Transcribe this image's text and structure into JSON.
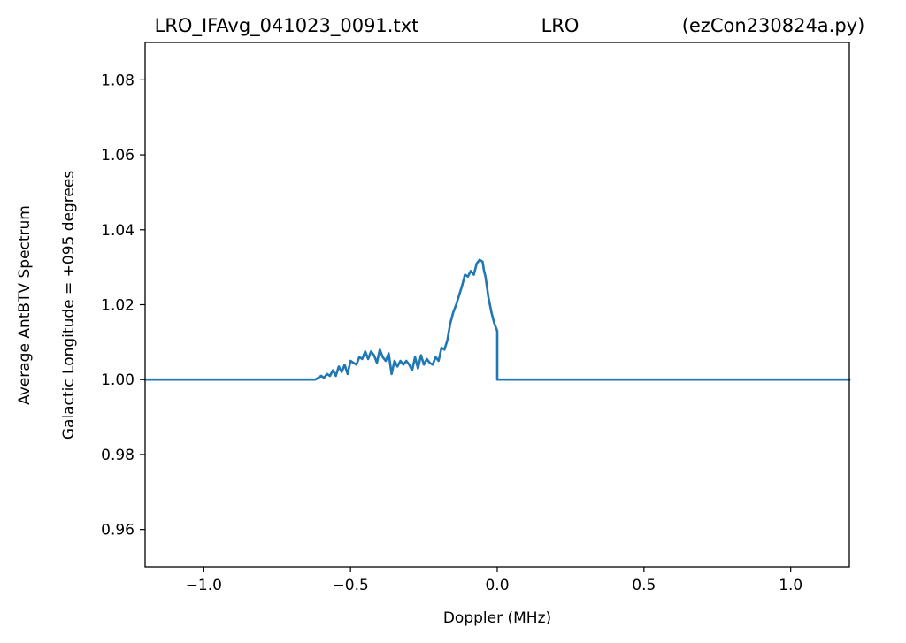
{
  "chart_data": {
    "type": "line",
    "title_parts": {
      "left": "LRO_IFAvg_041023_0091.txt",
      "center": "LRO",
      "right": "(ezCon230824a.py)"
    },
    "xlabel": "Doppler (MHz)",
    "ylabel_lines": [
      "Average AntBTV Spectrum",
      "Galactic Longitude = +095 degrees"
    ],
    "xlim": [
      -1.2,
      1.2
    ],
    "ylim": [
      0.95,
      1.09
    ],
    "xticks": [
      -1.0,
      -0.5,
      0.0,
      0.5,
      1.0
    ],
    "xtick_labels": [
      "−1.0",
      "−0.5",
      "0.0",
      "0.5",
      "1.0"
    ],
    "yticks": [
      0.96,
      0.98,
      1.0,
      1.02,
      1.04,
      1.06,
      1.08
    ],
    "ytick_labels": [
      "0.96",
      "0.98",
      "1.00",
      "1.02",
      "1.04",
      "1.06",
      "1.08"
    ],
    "grid": false,
    "series": [
      {
        "color": "#1f77b4",
        "x": [
          -1.2,
          -0.62,
          -0.6,
          -0.59,
          -0.58,
          -0.57,
          -0.56,
          -0.55,
          -0.54,
          -0.53,
          -0.52,
          -0.51,
          -0.5,
          -0.49,
          -0.48,
          -0.47,
          -0.46,
          -0.45,
          -0.44,
          -0.43,
          -0.42,
          -0.41,
          -0.4,
          -0.39,
          -0.38,
          -0.37,
          -0.36,
          -0.35,
          -0.34,
          -0.33,
          -0.32,
          -0.31,
          -0.3,
          -0.29,
          -0.28,
          -0.27,
          -0.26,
          -0.25,
          -0.24,
          -0.23,
          -0.22,
          -0.21,
          -0.2,
          -0.19,
          -0.18,
          -0.17,
          -0.16,
          -0.15,
          -0.14,
          -0.13,
          -0.12,
          -0.11,
          -0.1,
          -0.09,
          -0.08,
          -0.07,
          -0.06,
          -0.05,
          -0.045,
          -0.04,
          -0.03,
          -0.02,
          -0.01,
          0.0,
          0.0,
          1.2
        ],
        "y": [
          1.0,
          1.0,
          1.001,
          1.0005,
          1.0015,
          1.001,
          1.0025,
          1.001,
          1.0035,
          1.002,
          1.004,
          1.0015,
          1.005,
          1.0045,
          1.004,
          1.006,
          1.0055,
          1.0075,
          1.0055,
          1.0075,
          1.0065,
          1.0045,
          1.008,
          1.006,
          1.005,
          1.007,
          1.0015,
          1.005,
          1.0035,
          1.005,
          1.004,
          1.005,
          1.004,
          1.0025,
          1.006,
          1.003,
          1.0065,
          1.004,
          1.0055,
          1.0045,
          1.004,
          1.006,
          1.005,
          1.0085,
          1.008,
          1.0105,
          1.015,
          1.018,
          1.02,
          1.0225,
          1.025,
          1.028,
          1.0275,
          1.029,
          1.028,
          1.031,
          1.032,
          1.0315,
          1.029,
          1.0275,
          1.022,
          1.018,
          1.015,
          1.013,
          1.0,
          1.0
        ]
      }
    ]
  }
}
